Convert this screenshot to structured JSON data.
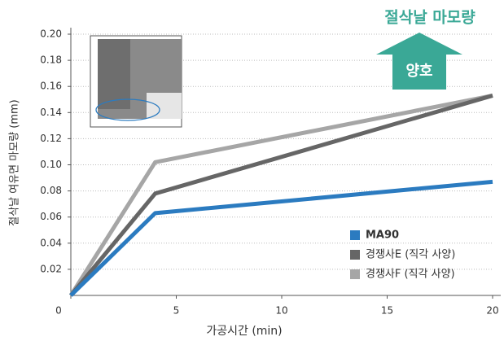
{
  "chart_data": {
    "type": "line",
    "x_label": "가공시간 (min)",
    "y_label": "절삭날 여유면 마모량 (mm)",
    "annotation": "절삭날 마모량",
    "arrow_label": "양호",
    "x": [
      0,
      4,
      20
    ],
    "series": [
      {
        "name": "MA90",
        "color": "#2b7bc0",
        "values": [
          0,
          0.063,
          0.087
        ]
      },
      {
        "name": "경쟁사E (직각 사양)",
        "color": "#666666",
        "values": [
          0,
          0.078,
          0.153
        ]
      },
      {
        "name": "경쟁사F (직각 사양)",
        "color": "#a6a6a6",
        "values": [
          0,
          0.102,
          0.153
        ]
      }
    ],
    "xlim": [
      0,
      20
    ],
    "xticks": [
      0,
      5,
      10,
      15,
      20
    ],
    "ylim": [
      0,
      0.2
    ],
    "yticks": [
      0.02,
      0.04,
      0.06,
      0.08,
      {
        "value": 0.1,
        "label": "0.10"
      },
      0.12,
      0.14,
      0.16,
      0.18,
      {
        "value": 0.2,
        "label": "0.20"
      }
    ],
    "grid": true
  }
}
